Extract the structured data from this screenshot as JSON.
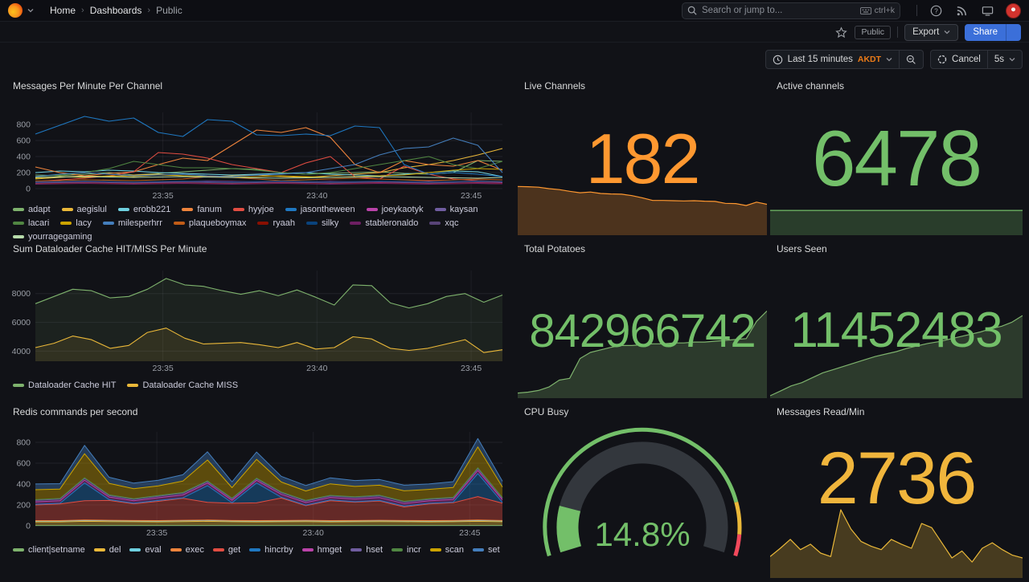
{
  "nav": {
    "breadcrumb": [
      "Home",
      "Dashboards",
      "Public"
    ],
    "search_placeholder": "Search or jump to...",
    "search_shortcut": "ctrl+k"
  },
  "controls": {
    "visibility_badge": "Public",
    "export_label": "Export",
    "share_label": "Share"
  },
  "timebar": {
    "range_label": "Last 15 minutes",
    "timezone": "AKDT",
    "refresh_label": "Cancel",
    "interval_label": "5s"
  },
  "panels": {
    "messages_per_minute": {
      "title": "Messages Per Minute Per Channel"
    },
    "live_channels": {
      "title": "Live Channels",
      "value": "182",
      "color": "#FF9830"
    },
    "active_channels": {
      "title": "Active channels",
      "value": "6478",
      "color": "#73BF69"
    },
    "dataloader": {
      "title": "Sum Dataloader Cache HIT/MISS Per Minute"
    },
    "total_potatoes": {
      "title": "Total Potatoes",
      "value": "842966742",
      "color": "#73BF69"
    },
    "users_seen": {
      "title": "Users Seen",
      "value": "11452483",
      "color": "#73BF69"
    },
    "redis": {
      "title": "Redis commands per second"
    },
    "cpu_busy": {
      "title": "CPU Busy",
      "value": "14.8%",
      "color": "#73BF69"
    },
    "messages_read": {
      "title": "Messages Read/Min",
      "value": "2736",
      "color": "#F0B53C"
    }
  },
  "chart_data": [
    {
      "id": "messages_per_minute",
      "type": "line",
      "title": "Messages Per Minute Per Channel",
      "ylim": [
        0,
        950
      ],
      "y_ticks": [
        0,
        200,
        400,
        600,
        800
      ],
      "x_ticks": [
        {
          "label": "23:35",
          "f": 0.273
        },
        {
          "label": "23:40",
          "f": 0.603
        },
        {
          "label": "23:45",
          "f": 0.933
        }
      ],
      "fill_opacity": 0,
      "stacked": false,
      "series": [
        {
          "name": "adapt",
          "color": "#7EB26D",
          "values": [
            170,
            160,
            180,
            200,
            170,
            190,
            210,
            230,
            250,
            240,
            200,
            180,
            190,
            200,
            210,
            190,
            180,
            200,
            350,
            340
          ]
        },
        {
          "name": "aegislul",
          "color": "#EAB839",
          "values": [
            120,
            140,
            160,
            150,
            170,
            180,
            160,
            150,
            160,
            170,
            150,
            140,
            160,
            180,
            200,
            260,
            300,
            350,
            420,
            500
          ]
        },
        {
          "name": "erobb221",
          "color": "#6ED0E0",
          "values": [
            200,
            220,
            210,
            230,
            220,
            200,
            190,
            180,
            170,
            180,
            190,
            200,
            180,
            170,
            160,
            180,
            200,
            220,
            210,
            150
          ]
        },
        {
          "name": "fanum",
          "color": "#EF843C",
          "values": [
            270,
            200,
            160,
            190,
            210,
            300,
            380,
            350,
            540,
            730,
            700,
            760,
            640,
            300,
            200,
            350,
            300,
            280,
            350,
            230
          ]
        },
        {
          "name": "hyyjoe",
          "color": "#E24D42",
          "values": [
            90,
            110,
            130,
            160,
            210,
            450,
            430,
            380,
            300,
            250,
            200,
            320,
            400,
            150,
            120,
            280,
            180,
            120,
            100,
            90
          ]
        },
        {
          "name": "jasontheween",
          "color": "#1F78C1",
          "values": [
            680,
            790,
            900,
            840,
            880,
            700,
            650,
            860,
            840,
            670,
            660,
            680,
            660,
            780,
            760,
            300,
            180,
            200,
            180,
            150
          ]
        },
        {
          "name": "joeykaotyk",
          "color": "#BA43A9",
          "values": [
            80,
            85,
            90,
            85,
            80,
            85,
            90,
            95,
            90,
            85,
            80,
            85,
            90,
            85,
            80,
            85,
            90,
            85,
            80,
            75
          ]
        },
        {
          "name": "kaysan",
          "color": "#705DA0",
          "values": [
            70,
            72,
            75,
            70,
            68,
            72,
            75,
            70,
            68,
            70,
            72,
            75,
            70,
            68,
            70,
            72,
            70,
            68,
            65,
            60
          ]
        },
        {
          "name": "lacari",
          "color": "#508642",
          "values": [
            150,
            170,
            200,
            250,
            340,
            300,
            260,
            260,
            250,
            230,
            200,
            180,
            200,
            250,
            300,
            350,
            400,
            300,
            250,
            340
          ]
        },
        {
          "name": "lacy",
          "color": "#CCA300",
          "values": [
            130,
            150,
            140,
            160,
            150,
            170,
            160,
            150,
            140,
            150,
            160,
            150,
            140,
            150,
            160,
            170,
            200,
            230,
            250,
            240
          ]
        },
        {
          "name": "milesperhrr",
          "color": "#447EBC",
          "values": [
            150,
            180,
            200,
            180,
            160,
            170,
            180,
            160,
            150,
            170,
            180,
            200,
            250,
            300,
            420,
            500,
            520,
            630,
            540,
            200
          ]
        },
        {
          "name": "plaqueboymax",
          "color": "#C15C17",
          "values": [
            95,
            100,
            110,
            105,
            100,
            110,
            120,
            150,
            140,
            120,
            100,
            110,
            120,
            130,
            120,
            110,
            100,
            110,
            120,
            110
          ]
        },
        {
          "name": "ryaah",
          "color": "#890F02",
          "values": [
            60,
            65,
            70,
            65,
            60,
            65,
            70,
            65,
            60,
            65,
            70,
            65,
            60,
            65,
            70,
            65,
            60,
            65,
            70,
            65
          ]
        },
        {
          "name": "silky",
          "color": "#0A437C",
          "values": [
            85,
            90,
            95,
            90,
            85,
            90,
            95,
            90,
            85,
            90,
            95,
            90,
            85,
            90,
            95,
            90,
            85,
            90,
            95,
            90
          ]
        },
        {
          "name": "stableronaldo",
          "color": "#6D1F62",
          "values": [
            55,
            60,
            65,
            60,
            55,
            60,
            65,
            60,
            55,
            60,
            65,
            60,
            55,
            60,
            65,
            60,
            55,
            60,
            65,
            60
          ]
        },
        {
          "name": "xqc",
          "color": "#584477",
          "values": [
            75,
            80,
            85,
            80,
            75,
            80,
            85,
            80,
            75,
            80,
            85,
            80,
            75,
            80,
            85,
            80,
            75,
            80,
            85,
            80
          ]
        },
        {
          "name": "yourragegaming",
          "color": "#B7DBAB",
          "values": [
            140,
            145,
            150,
            145,
            140,
            145,
            150,
            145,
            140,
            135,
            130,
            135,
            140,
            145,
            150,
            145,
            140,
            135,
            130,
            140
          ]
        }
      ]
    },
    {
      "id": "dataloader",
      "type": "line",
      "title": "Sum Dataloader Cache HIT/MISS Per Minute",
      "ylim": [
        3300,
        9600
      ],
      "y_ticks": [
        4000,
        6000,
        8000
      ],
      "x_ticks": [
        {
          "label": "23:35",
          "f": 0.273
        },
        {
          "label": "23:40",
          "f": 0.603
        },
        {
          "label": "23:45",
          "f": 0.933
        }
      ],
      "fill_opacity": 0.1,
      "stacked": false,
      "series": [
        {
          "name": "Dataloader Cache HIT",
          "color": "#7EB26D",
          "values": [
            7300,
            7800,
            8300,
            8200,
            7700,
            7800,
            8300,
            9050,
            8600,
            8500,
            8200,
            7950,
            8200,
            7850,
            8250,
            7750,
            7200,
            8600,
            8550,
            7350,
            7000,
            7300,
            7800,
            8000,
            7400,
            7900
          ]
        },
        {
          "name": "Dataloader Cache MISS",
          "color": "#EAB839",
          "values": [
            4250,
            4550,
            5050,
            4800,
            4200,
            4400,
            5300,
            5600,
            4900,
            4500,
            4550,
            4600,
            4450,
            4250,
            4600,
            4150,
            4250,
            5000,
            4850,
            4200,
            4050,
            4200,
            4500,
            4800,
            3900,
            4100
          ]
        }
      ]
    },
    {
      "id": "redis",
      "type": "line",
      "title": "Redis commands per second",
      "ylim": [
        0,
        900
      ],
      "y_ticks": [
        0,
        200,
        400,
        600,
        800
      ],
      "x_ticks": [
        {
          "label": "23:35",
          "f": 0.26
        },
        {
          "label": "23:40",
          "f": 0.595
        },
        {
          "label": "23:45",
          "f": 0.93
        }
      ],
      "fill_opacity": 0.4,
      "stacked": true,
      "series": [
        {
          "name": "client|setname",
          "color": "#7EB26D",
          "values": [
            3,
            3,
            3,
            3,
            3,
            3,
            3,
            3,
            3,
            3,
            3,
            3,
            3,
            3,
            3,
            3,
            3,
            3,
            3,
            3
          ]
        },
        {
          "name": "del",
          "color": "#EAB839",
          "values": [
            35,
            35,
            40,
            38,
            36,
            35,
            38,
            40,
            36,
            35,
            36,
            38,
            35,
            36,
            38,
            36,
            35,
            36,
            40,
            36
          ]
        },
        {
          "name": "eval",
          "color": "#6ED0E0",
          "values": [
            8,
            8,
            8,
            8,
            8,
            8,
            8,
            8,
            8,
            8,
            8,
            8,
            8,
            8,
            8,
            8,
            8,
            8,
            8,
            8
          ]
        },
        {
          "name": "exec",
          "color": "#EF843C",
          "values": [
            4,
            4,
            4,
            4,
            4,
            4,
            4,
            4,
            4,
            4,
            4,
            4,
            4,
            4,
            4,
            4,
            4,
            4,
            4,
            4
          ]
        },
        {
          "name": "get",
          "color": "#E24D42",
          "values": [
            150,
            160,
            185,
            190,
            160,
            185,
            210,
            170,
            165,
            170,
            215,
            140,
            190,
            175,
            185,
            130,
            160,
            170,
            225,
            165
          ]
        },
        {
          "name": "hincrby",
          "color": "#1F78C1",
          "values": [
            5,
            5,
            170,
            8,
            5,
            8,
            5,
            160,
            5,
            190,
            8,
            5,
            8,
            5,
            5,
            8,
            5,
            5,
            220,
            8
          ]
        },
        {
          "name": "hmget",
          "color": "#BA43A9",
          "values": [
            25,
            26,
            28,
            25,
            24,
            26,
            28,
            25,
            24,
            26,
            28,
            25,
            24,
            26,
            28,
            25,
            24,
            26,
            30,
            26
          ]
        },
        {
          "name": "hset",
          "color": "#705DA0",
          "values": [
            15,
            15,
            16,
            15,
            14,
            15,
            16,
            15,
            14,
            15,
            16,
            15,
            14,
            15,
            16,
            15,
            14,
            15,
            18,
            15
          ]
        },
        {
          "name": "incr",
          "color": "#508642",
          "values": [
            6,
            6,
            7,
            6,
            6,
            6,
            7,
            6,
            6,
            6,
            7,
            6,
            6,
            6,
            7,
            6,
            6,
            6,
            8,
            6
          ]
        },
        {
          "name": "scan",
          "color": "#CCA300",
          "values": [
            95,
            90,
            230,
            110,
            95,
            92,
            110,
            200,
            100,
            180,
            95,
            90,
            110,
            100,
            95,
            100,
            90,
            95,
            200,
            100
          ]
        },
        {
          "name": "set",
          "color": "#447EBC",
          "values": [
            55,
            52,
            80,
            58,
            54,
            55,
            60,
            78,
            56,
            70,
            55,
            52,
            58,
            56,
            55,
            54,
            52,
            55,
            80,
            56
          ]
        }
      ]
    },
    {
      "id": "live_channels_spark",
      "type": "area",
      "color": "#FF9830",
      "ylim": [
        0,
        420
      ],
      "values": [
        199,
        198,
        196,
        190,
        186,
        179,
        173,
        176,
        170,
        168,
        167,
        161,
        152,
        141,
        141,
        140,
        139,
        140,
        138,
        137,
        129,
        128,
        120,
        134,
        125
      ]
    },
    {
      "id": "active_channels_spark",
      "type": "area",
      "color": "#73BF69",
      "ylim": [
        0,
        1
      ],
      "values": [
        0.88,
        0.88,
        0.88,
        0.88,
        0.88,
        0.88,
        0.88,
        0.88,
        0.88,
        0.88
      ]
    },
    {
      "id": "total_potatoes_spark",
      "type": "area",
      "color": "#7EB26D",
      "ylim": [
        0,
        105
      ],
      "values": [
        5,
        6,
        8,
        12,
        20,
        22,
        45,
        52,
        55,
        58,
        60,
        60,
        61,
        62,
        62,
        63,
        63,
        64,
        64,
        65,
        66,
        67,
        68,
        88,
        100
      ]
    },
    {
      "id": "users_seen_spark",
      "type": "area",
      "color": "#7EB26D",
      "ylim": [
        0,
        108
      ],
      "values": [
        2,
        8,
        14,
        18,
        24,
        30,
        34,
        38,
        42,
        46,
        50,
        53,
        56,
        60,
        63,
        66,
        68,
        71,
        74,
        77,
        80,
        84,
        87,
        92,
        100
      ]
    },
    {
      "id": "messages_read_spark",
      "type": "area",
      "color": "#EAB839",
      "ylim": [
        0,
        105
      ],
      "values": [
        30,
        42,
        55,
        40,
        48,
        35,
        30,
        98,
        70,
        52,
        45,
        40,
        55,
        48,
        42,
        78,
        72,
        50,
        28,
        38,
        22,
        42,
        50,
        40,
        32,
        28
      ]
    },
    {
      "id": "cpu_gauge",
      "type": "gauge",
      "value": 14.8,
      "display": "14.8%",
      "min": 0,
      "max": 100,
      "start_angle": 197,
      "end_angle": -17,
      "thresholds": [
        {
          "from": 0,
          "color": "#73BF69"
        },
        {
          "from": 85,
          "color": "#EAB839"
        },
        {
          "from": 94,
          "color": "#F2495C"
        }
      ]
    }
  ]
}
